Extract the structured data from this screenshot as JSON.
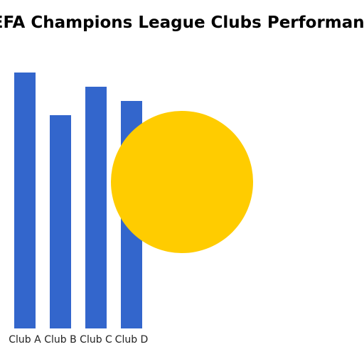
{
  "chart_data": {
    "type": "bar",
    "title": "UEFA Champions League Clubs Performance",
    "categories": [
      "Club A",
      "Club B",
      "Club C",
      "Club D"
    ],
    "values": [
      18,
      15,
      17,
      16
    ],
    "ylim": [
      0,
      18
    ],
    "xlabel": "",
    "ylabel": "",
    "grid": false,
    "colors": {
      "bar": "#3366cc",
      "circle": "#ffcc00"
    }
  }
}
